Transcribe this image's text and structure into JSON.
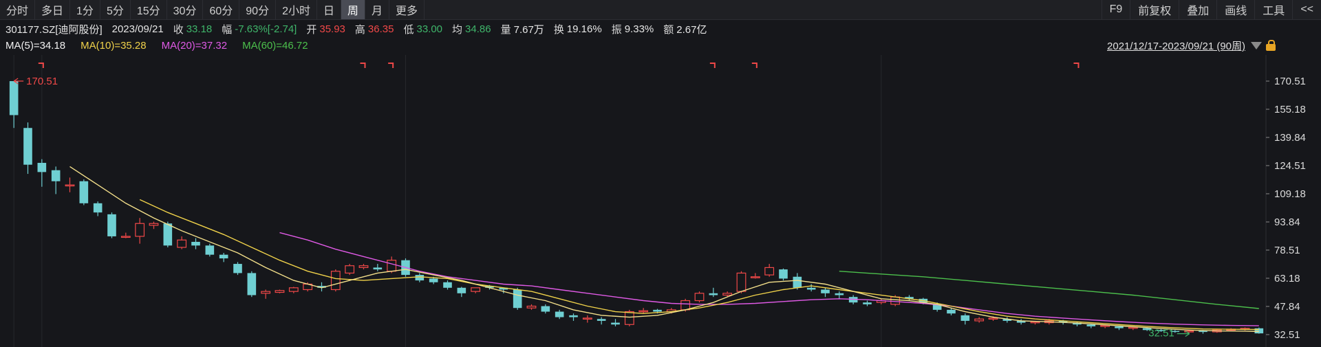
{
  "toolbar": {
    "periods": [
      {
        "label": "分时",
        "active": false
      },
      {
        "label": "多日",
        "active": false
      },
      {
        "label": "1分",
        "active": false
      },
      {
        "label": "5分",
        "active": false
      },
      {
        "label": "15分",
        "active": false
      },
      {
        "label": "30分",
        "active": false
      },
      {
        "label": "60分",
        "active": false
      },
      {
        "label": "90分",
        "active": false
      },
      {
        "label": "2小时",
        "active": false
      },
      {
        "label": "日",
        "active": false
      },
      {
        "label": "周",
        "active": true
      },
      {
        "label": "月",
        "active": false
      },
      {
        "label": "更多",
        "active": false
      }
    ],
    "right": [
      "F9",
      "前复权",
      "叠加",
      "画线",
      "工具",
      "<<"
    ]
  },
  "info": {
    "symbol": "301177.SZ[迪阿股份]",
    "date": "2023/09/21",
    "close_label": "收",
    "close": "33.18",
    "change_label": "幅",
    "change": "-7.63%[-2.74]",
    "open_label": "开",
    "open": "35.93",
    "high_label": "高",
    "high": "36.35",
    "low_label": "低",
    "low": "33.00",
    "avg_label": "均",
    "avg": "34.86",
    "volume_label": "量",
    "volume": "7.67万",
    "turnover_label": "换",
    "turnover": "19.16%",
    "amplitude_label": "振",
    "amplitude": "9.33%",
    "amount_label": "额",
    "amount": "2.67亿"
  },
  "ma": {
    "ma5": "MA(5)=34.18",
    "ma10": "MA(10)=35.28",
    "ma20": "MA(20)=37.32",
    "ma60": "MA(60)=46.72"
  },
  "range": "2021/12/17-2023/09/21 (90周)",
  "colors": {
    "up": "#f04848",
    "down": "#6fcfd2",
    "ma5": "#f2f2f2",
    "ma10": "#f0d24a",
    "ma20": "#e05ae6",
    "ma60": "#4cc04c",
    "grid": "#26272c"
  },
  "chart_data": {
    "type": "candlestick",
    "y_ticks": [
      "170.51",
      "155.18",
      "139.84",
      "124.51",
      "109.18",
      "93.84",
      "78.51",
      "63.18",
      "47.84",
      "32.51"
    ],
    "ylim": [
      28,
      178
    ],
    "n_bars": 90,
    "max_label": "170.51",
    "min_label": "32.51",
    "candles": [
      [
        1,
        170.5,
        152,
        145,
        170.5
      ],
      [
        2,
        145,
        125,
        120,
        148
      ],
      [
        3,
        126,
        121,
        113,
        128
      ],
      [
        4,
        122,
        116,
        109,
        124
      ],
      [
        5,
        114,
        114,
        110,
        118
      ],
      [
        6,
        116,
        104,
        103,
        117
      ],
      [
        7,
        104,
        99,
        97,
        105
      ],
      [
        8,
        98,
        86,
        85,
        99
      ],
      [
        9,
        86,
        86,
        85,
        88
      ],
      [
        10,
        86,
        93,
        82,
        96
      ],
      [
        11,
        92,
        93,
        90,
        94
      ],
      [
        12,
        93,
        81,
        80,
        94
      ],
      [
        13,
        80,
        84,
        79,
        86
      ],
      [
        14,
        83,
        81,
        79,
        85
      ],
      [
        15,
        81,
        76,
        75,
        82
      ],
      [
        16,
        76,
        74,
        72,
        77
      ],
      [
        17,
        71,
        66,
        65,
        72
      ],
      [
        18,
        66,
        54,
        53,
        67
      ],
      [
        19,
        55,
        56,
        52,
        57
      ],
      [
        20,
        55.5,
        56.5,
        55,
        57
      ],
      [
        21,
        56,
        58,
        55,
        58.5
      ],
      [
        22,
        57,
        60,
        56,
        61
      ],
      [
        23,
        59,
        58,
        56,
        61
      ],
      [
        24,
        57,
        67,
        56,
        68
      ],
      [
        25,
        66,
        70,
        65,
        71
      ],
      [
        26,
        69,
        70,
        68,
        71
      ],
      [
        27,
        69,
        68,
        67,
        71
      ],
      [
        28,
        67,
        73,
        66,
        75
      ],
      [
        29,
        73,
        65,
        64,
        74
      ],
      [
        30,
        65,
        62,
        61,
        66
      ],
      [
        31,
        63,
        61,
        60,
        64
      ],
      [
        32,
        61,
        58,
        57,
        62
      ],
      [
        33,
        58,
        55,
        53,
        58.5
      ],
      [
        34,
        56,
        58,
        55,
        58
      ],
      [
        35,
        59,
        58,
        57,
        59.5
      ],
      [
        36,
        58,
        57,
        55,
        58
      ],
      [
        37,
        57,
        47,
        46,
        58
      ],
      [
        38,
        47,
        48,
        46,
        49
      ],
      [
        39,
        48,
        45,
        44,
        49
      ],
      [
        40,
        45,
        42,
        41,
        46
      ],
      [
        41,
        43,
        42,
        40,
        44
      ],
      [
        42,
        41,
        41.5,
        39,
        43
      ],
      [
        43,
        41,
        40,
        38,
        42
      ],
      [
        44,
        39,
        38,
        37,
        41
      ],
      [
        45,
        38,
        45,
        37,
        46
      ],
      [
        46,
        45,
        45.5,
        44,
        47
      ],
      [
        47,
        46,
        45,
        44,
        46.5
      ],
      [
        48,
        45,
        46,
        44,
        47
      ],
      [
        49,
        46,
        51,
        45,
        52
      ],
      [
        50,
        51,
        55,
        50,
        56
      ],
      [
        51,
        55,
        54,
        53,
        58
      ],
      [
        52,
        54,
        55,
        53,
        56
      ],
      [
        53,
        56,
        66,
        55,
        67
      ],
      [
        54,
        64,
        64,
        63,
        66
      ],
      [
        55,
        65,
        69,
        64,
        71
      ],
      [
        56,
        68,
        63,
        62,
        68.5
      ],
      [
        57,
        64,
        58,
        57,
        66
      ],
      [
        58,
        58,
        57,
        56,
        60
      ],
      [
        59,
        57,
        55,
        53,
        58
      ],
      [
        60,
        55,
        54,
        52,
        56
      ],
      [
        61,
        53,
        50,
        49,
        54
      ],
      [
        62,
        50,
        49,
        48,
        51
      ],
      [
        63,
        50,
        51,
        49,
        52
      ],
      [
        64,
        49,
        53,
        48,
        54
      ],
      [
        65,
        53,
        52,
        51,
        54
      ],
      [
        66,
        52,
        50,
        49,
        52.5
      ],
      [
        67,
        49,
        46,
        45,
        50
      ],
      [
        68,
        46,
        44,
        43,
        47
      ],
      [
        69,
        43,
        40,
        38,
        44
      ],
      [
        70,
        40,
        41,
        39,
        42
      ],
      [
        71,
        41,
        41.5,
        40,
        42.5
      ],
      [
        72,
        41,
        40,
        39,
        42
      ],
      [
        73,
        40,
        39,
        38,
        41
      ],
      [
        74,
        39,
        39.5,
        38,
        40
      ],
      [
        75,
        39,
        40,
        38,
        41
      ],
      [
        76,
        40,
        39,
        38,
        40.5
      ],
      [
        77,
        39,
        38,
        37,
        39.5
      ],
      [
        78,
        38,
        37,
        36,
        38.5
      ],
      [
        79,
        37,
        37.5,
        36,
        38
      ],
      [
        80,
        37,
        36,
        35,
        37.5
      ],
      [
        81,
        36,
        36.5,
        35,
        37
      ],
      [
        82,
        36,
        35,
        34.5,
        36.5
      ],
      [
        83,
        35,
        34.5,
        34,
        35.5
      ],
      [
        84,
        34.5,
        34,
        33.5,
        35
      ],
      [
        85,
        34,
        34.5,
        33.5,
        35
      ],
      [
        86,
        34.5,
        34,
        33,
        35
      ],
      [
        87,
        34,
        35,
        33.5,
        35.5
      ],
      [
        88,
        35,
        35.5,
        34.5,
        36
      ],
      [
        89,
        35.5,
        35.9,
        34.8,
        36.4
      ],
      [
        90,
        35.93,
        33.18,
        33.0,
        36.35
      ]
    ],
    "ma5": [
      [
        5,
        124
      ],
      [
        7,
        114
      ],
      [
        9,
        104
      ],
      [
        11,
        96
      ],
      [
        13,
        89
      ],
      [
        15,
        83
      ],
      [
        17,
        77
      ],
      [
        19,
        69
      ],
      [
        21,
        62
      ],
      [
        23,
        58
      ],
      [
        25,
        62
      ],
      [
        27,
        66
      ],
      [
        29,
        68
      ],
      [
        31,
        65
      ],
      [
        33,
        62
      ],
      [
        35,
        58
      ],
      [
        37,
        54
      ],
      [
        39,
        51
      ],
      [
        41,
        46
      ],
      [
        43,
        43
      ],
      [
        45,
        42
      ],
      [
        47,
        43
      ],
      [
        49,
        46
      ],
      [
        51,
        50
      ],
      [
        53,
        56
      ],
      [
        55,
        61
      ],
      [
        57,
        62
      ],
      [
        59,
        60
      ],
      [
        61,
        56
      ],
      [
        63,
        52
      ],
      [
        65,
        51
      ],
      [
        67,
        49
      ],
      [
        69,
        45
      ],
      [
        71,
        42
      ],
      [
        73,
        40
      ],
      [
        75,
        39.5
      ],
      [
        77,
        38.8
      ],
      [
        79,
        37.8
      ],
      [
        81,
        36.8
      ],
      [
        83,
        35.8
      ],
      [
        85,
        35
      ],
      [
        87,
        34.5
      ],
      [
        89,
        34.4
      ],
      [
        90,
        34.18
      ]
    ],
    "ma10": [
      [
        10,
        106
      ],
      [
        12,
        99
      ],
      [
        14,
        93
      ],
      [
        16,
        87
      ],
      [
        18,
        80
      ],
      [
        20,
        73
      ],
      [
        22,
        67
      ],
      [
        24,
        63
      ],
      [
        26,
        62
      ],
      [
        28,
        63
      ],
      [
        30,
        64
      ],
      [
        32,
        63
      ],
      [
        34,
        60
      ],
      [
        36,
        58
      ],
      [
        38,
        56
      ],
      [
        40,
        52
      ],
      [
        42,
        48
      ],
      [
        44,
        45
      ],
      [
        46,
        44
      ],
      [
        48,
        45
      ],
      [
        50,
        47
      ],
      [
        52,
        50
      ],
      [
        54,
        54
      ],
      [
        56,
        57
      ],
      [
        58,
        59
      ],
      [
        60,
        57
      ],
      [
        62,
        55
      ],
      [
        64,
        53
      ],
      [
        66,
        51
      ],
      [
        68,
        48
      ],
      [
        70,
        45
      ],
      [
        72,
        42.5
      ],
      [
        74,
        41
      ],
      [
        76,
        40
      ],
      [
        78,
        39
      ],
      [
        80,
        38
      ],
      [
        82,
        37
      ],
      [
        84,
        36.2
      ],
      [
        86,
        35.6
      ],
      [
        88,
        35.4
      ],
      [
        90,
        35.28
      ]
    ],
    "ma20": [
      [
        20,
        88
      ],
      [
        22,
        84
      ],
      [
        24,
        79
      ],
      [
        26,
        75
      ],
      [
        28,
        71
      ],
      [
        30,
        67
      ],
      [
        32,
        64
      ],
      [
        34,
        62
      ],
      [
        36,
        60
      ],
      [
        38,
        59
      ],
      [
        40,
        57
      ],
      [
        42,
        55
      ],
      [
        44,
        53
      ],
      [
        46,
        51
      ],
      [
        48,
        49.5
      ],
      [
        50,
        49
      ],
      [
        52,
        49
      ],
      [
        54,
        49.5
      ],
      [
        56,
        50.5
      ],
      [
        58,
        51.5
      ],
      [
        60,
        52
      ],
      [
        62,
        51.5
      ],
      [
        64,
        50.5
      ],
      [
        66,
        49.5
      ],
      [
        68,
        48
      ],
      [
        70,
        46
      ],
      [
        72,
        44
      ],
      [
        74,
        42.5
      ],
      [
        76,
        41.5
      ],
      [
        78,
        40.5
      ],
      [
        80,
        39.6
      ],
      [
        82,
        38.8
      ],
      [
        84,
        38.2
      ],
      [
        86,
        37.8
      ],
      [
        88,
        37.5
      ],
      [
        90,
        37.32
      ]
    ],
    "ma60": [
      [
        60,
        67
      ],
      [
        63,
        65.5
      ],
      [
        66,
        64
      ],
      [
        69,
        62
      ],
      [
        72,
        60
      ],
      [
        75,
        58
      ],
      [
        78,
        56
      ],
      [
        81,
        54
      ],
      [
        84,
        51.5
      ],
      [
        87,
        49
      ],
      [
        90,
        46.72
      ]
    ],
    "markers": [
      3,
      26,
      28,
      51,
      54,
      77
    ]
  }
}
